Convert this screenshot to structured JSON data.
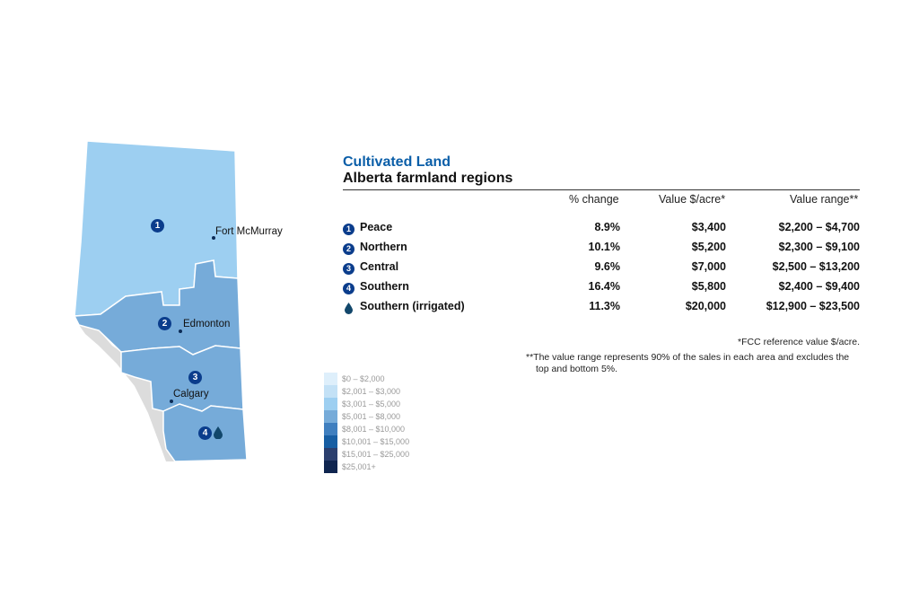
{
  "title": "Cultivated Land",
  "subtitle": "Alberta farmland regions",
  "table": {
    "headers": [
      "% change",
      "Value $/acre*",
      "Value range**"
    ],
    "rows": [
      {
        "badge": "1",
        "region": "Peace",
        "change": "8.9%",
        "value": "$3,400",
        "range": "$2,200 – $4,700"
      },
      {
        "badge": "2",
        "region": "Northern",
        "change": "10.1%",
        "value": "$5,200",
        "range": "$2,300 – $9,100"
      },
      {
        "badge": "3",
        "region": "Central",
        "change": "9.6%",
        "value": "$7,000",
        "range": "$2,500 – $13,200"
      },
      {
        "badge": "4",
        "region": "Southern",
        "change": "16.4%",
        "value": "$5,800",
        "range": "$2,400 – $9,400"
      },
      {
        "badge": "water-drop-icon",
        "region": "Southern (irrigated)",
        "change": "11.3%",
        "value": "$20,000",
        "range": "$12,900 – $23,500"
      }
    ]
  },
  "notes": {
    "fcc": "*FCC reference value $/acre.",
    "range_line1": "**The value range represents 90% of the sales in each area and excludes the",
    "range_line2": "top and bottom 5%."
  },
  "map": {
    "badges": [
      "1",
      "2",
      "3",
      "4"
    ],
    "cities": [
      "Fort McMurray",
      "Edmonton",
      "Calgary"
    ],
    "colors": {
      "peace": "#9dcff1",
      "other_regions": "#76abd9",
      "mountains": "#dcdcdc",
      "badge": "#0b3d8c",
      "title": "#0a5ea8"
    }
  },
  "legend": [
    {
      "label": "$0 – $2,000",
      "color": "#deeffb"
    },
    {
      "label": "$2,001 – $3,000",
      "color": "#c3e1f6"
    },
    {
      "label": "$3,001 – $5,000",
      "color": "#9dcff1"
    },
    {
      "label": "$5,001 – $8,000",
      "color": "#76abd9"
    },
    {
      "label": "$8,001 – $10,000",
      "color": "#3f7fbf"
    },
    {
      "label": "$10,001 – $15,000",
      "color": "#175ea3"
    },
    {
      "label": "$15,001 – $25,000",
      "color": "#2b3f6e"
    },
    {
      "label": "$25,001+",
      "color": "#0f254f"
    }
  ]
}
